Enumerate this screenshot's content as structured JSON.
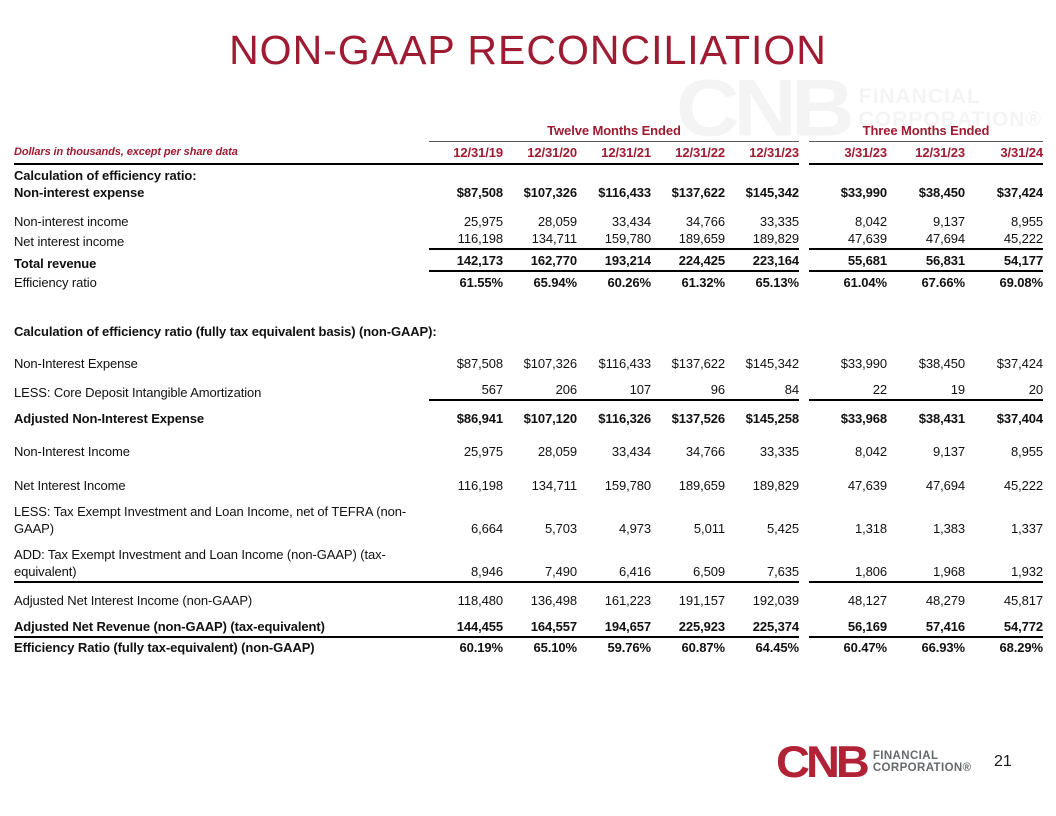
{
  "title": "NON-GAAP RECONCILIATION",
  "table": {
    "note": "Dollars in thousands, except per share data",
    "group1": {
      "label": "Twelve Months Ended",
      "cols": [
        "12/31/19",
        "12/31/20",
        "12/31/21",
        "12/31/22",
        "12/31/23"
      ]
    },
    "group2": {
      "label": "Three Months Ended",
      "cols": [
        "3/31/23",
        "12/31/23",
        "3/31/24"
      ]
    },
    "rows": [
      {
        "label": "Calculation of efficiency ratio:",
        "values": []
      },
      {
        "label": "Non-interest expense",
        "values": [
          "$87,508",
          "$107,326",
          "$116,433",
          "$137,622",
          "$145,342",
          "$33,990",
          "$38,450",
          "$37,424"
        ]
      },
      {
        "label": "Non-interest income",
        "values": [
          "25,975",
          "28,059",
          "33,434",
          "34,766",
          "33,335",
          "8,042",
          "9,137",
          "8,955"
        ]
      },
      {
        "label": "Net interest income",
        "values": [
          "116,198",
          "134,711",
          "159,780",
          "189,659",
          "189,829",
          "47,639",
          "47,694",
          "45,222"
        ]
      },
      {
        "label": "Total revenue",
        "values": [
          "142,173",
          "162,770",
          "193,214",
          "224,425",
          "223,164",
          "55,681",
          "56,831",
          "54,177"
        ]
      },
      {
        "label": "Efficiency ratio",
        "values": [
          "61.55%",
          "65.94%",
          "60.26%",
          "61.32%",
          "65.13%",
          "61.04%",
          "67.66%",
          "69.08%"
        ]
      },
      {
        "label": "Calculation of efficiency ratio (fully tax equivalent basis) (non-GAAP):",
        "values": []
      },
      {
        "label": "Non-Interest Expense",
        "values": [
          "$87,508",
          "$107,326",
          "$116,433",
          "$137,622",
          "$145,342",
          "$33,990",
          "$38,450",
          "$37,424"
        ]
      },
      {
        "label": "LESS: Core Deposit Intangible Amortization",
        "values": [
          "567",
          "206",
          "107",
          "96",
          "84",
          "22",
          "19",
          "20"
        ]
      },
      {
        "label": "Adjusted Non-Interest Expense",
        "values": [
          "$86,941",
          "$107,120",
          "$116,326",
          "$137,526",
          "$145,258",
          "$33,968",
          "$38,431",
          "$37,404"
        ]
      },
      {
        "label": "Non-Interest Income",
        "values": [
          "25,975",
          "28,059",
          "33,434",
          "34,766",
          "33,335",
          "8,042",
          "9,137",
          "8,955"
        ]
      },
      {
        "label": "Net Interest Income",
        "values": [
          "116,198",
          "134,711",
          "159,780",
          "189,659",
          "189,829",
          "47,639",
          "47,694",
          "45,222"
        ]
      },
      {
        "label": "LESS: Tax Exempt Investment and Loan Income, net of TEFRA (non-GAAP)",
        "values": [
          "6,664",
          "5,703",
          "4,973",
          "5,011",
          "5,425",
          "1,318",
          "1,383",
          "1,337"
        ]
      },
      {
        "label": "ADD: Tax Exempt Investment and Loan Income (non-GAAP) (tax-equivalent)",
        "values": [
          "8,946",
          "7,490",
          "6,416",
          "6,509",
          "7,635",
          "1,806",
          "1,968",
          "1,932"
        ]
      },
      {
        "label": "Adjusted Net Interest Income (non-GAAP)",
        "values": [
          "118,480",
          "136,498",
          "161,223",
          "191,157",
          "192,039",
          "48,127",
          "48,279",
          "45,817"
        ]
      },
      {
        "label": "Adjusted Net Revenue (non-GAAP) (tax-equivalent)",
        "values": [
          "144,455",
          "164,557",
          "194,657",
          "225,923",
          "225,374",
          "56,169",
          "57,416",
          "54,772"
        ]
      },
      {
        "label": "Efficiency Ratio (fully tax-equivalent) (non-GAAP)",
        "values": [
          "60.19%",
          "65.10%",
          "59.76%",
          "60.87%",
          "64.45%",
          "60.47%",
          "66.93%",
          "68.29%"
        ]
      }
    ]
  },
  "colors": {
    "brand_red": "#9E1B32",
    "logo_red": "#B22236",
    "logo_gray": "#66696C"
  },
  "footer": {
    "logo_cnb": "CNB",
    "logo_line1": "FINANCIAL",
    "logo_line2": "CORPORATION®",
    "page_number": "21"
  }
}
